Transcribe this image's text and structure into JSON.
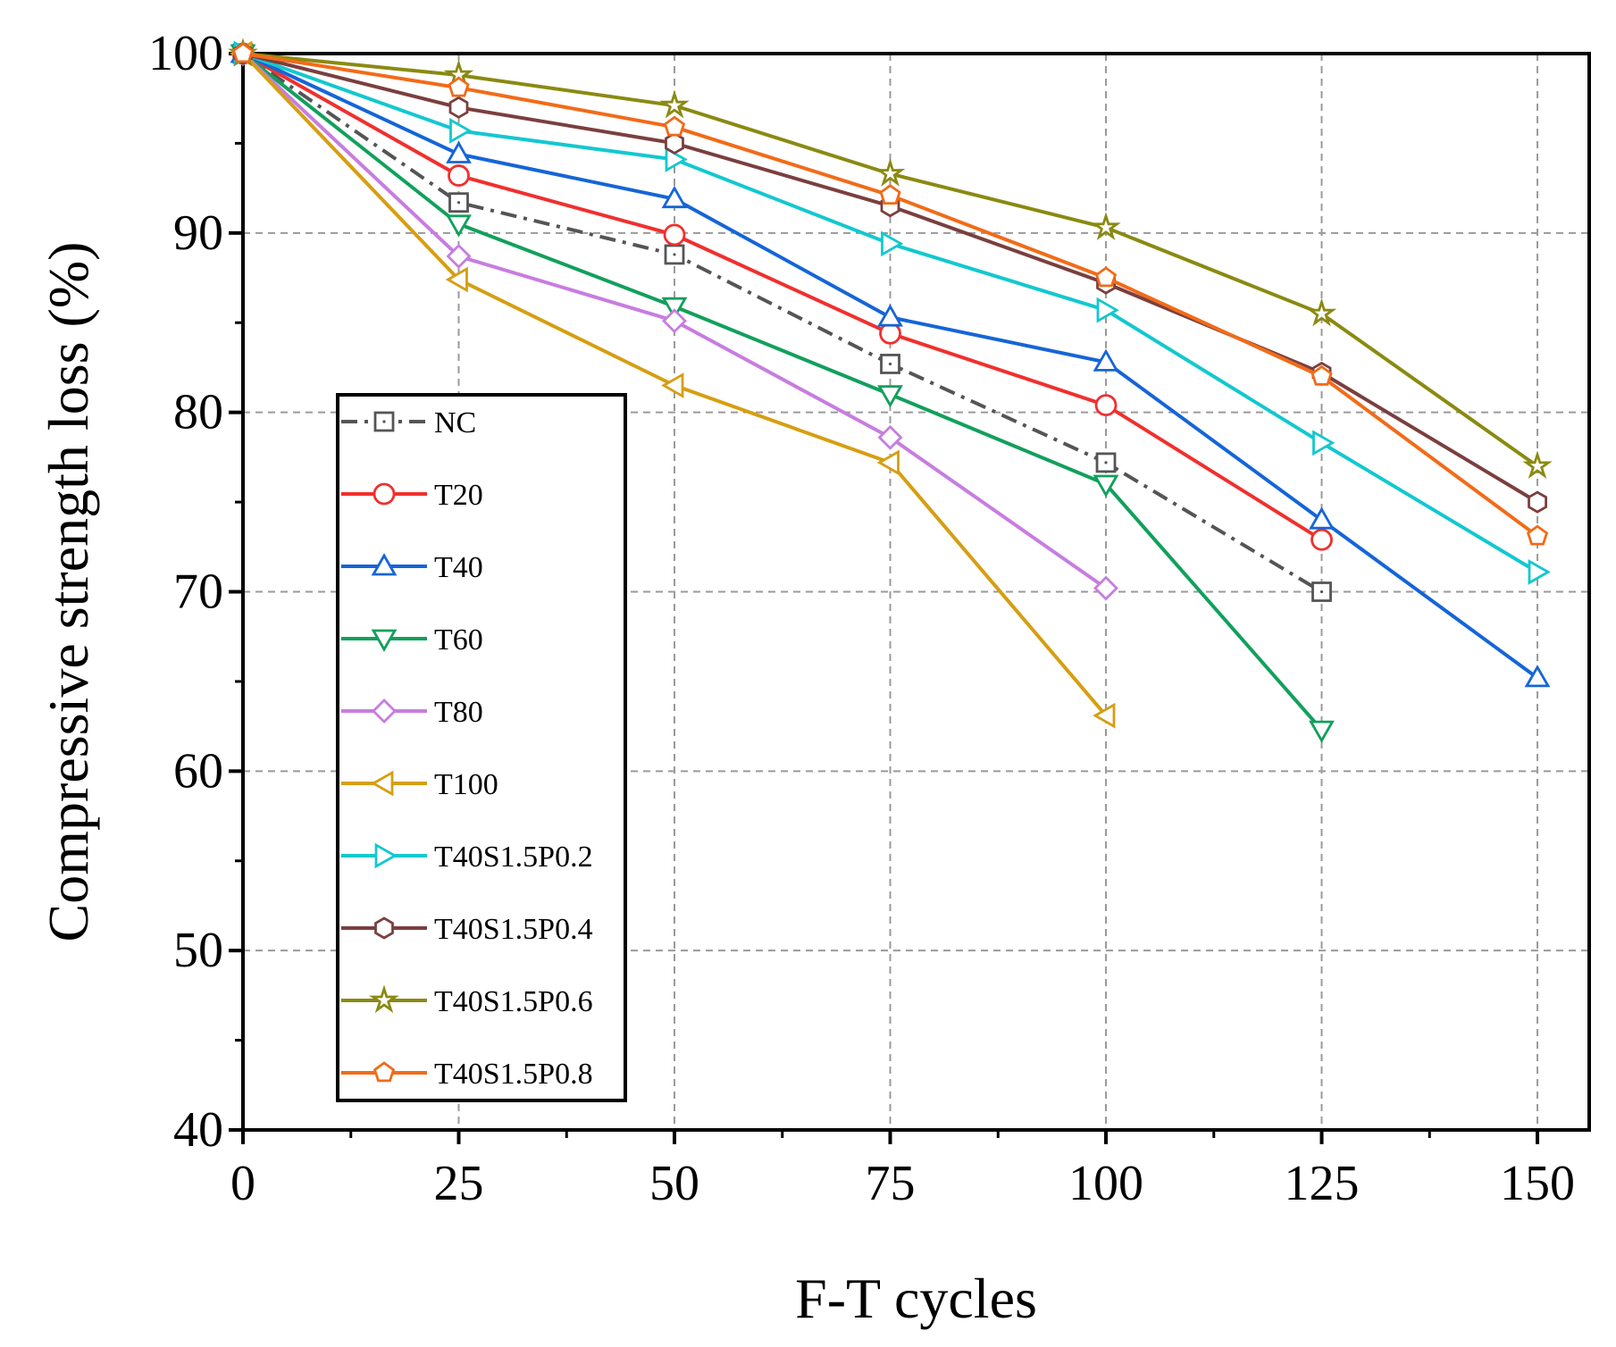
{
  "chart_data": {
    "type": "line",
    "xlabel": "F-T cycles",
    "ylabel": "Compressive strength loss  (%)",
    "xlim": [
      0,
      156
    ],
    "ylim": [
      40,
      100
    ],
    "x_ticks": [
      0,
      25,
      50,
      75,
      100,
      125,
      150
    ],
    "y_ticks": [
      40,
      50,
      60,
      70,
      80,
      90,
      100
    ],
    "x_tick_labels": [
      "0",
      "25",
      "50",
      "75",
      "100",
      "125",
      "150"
    ],
    "y_tick_labels": [
      "40",
      "50",
      "60",
      "70",
      "80",
      "90",
      "100"
    ],
    "grid": true,
    "legend_position": "lower-left (inside plot)",
    "series": [
      {
        "name": "NC",
        "color": "#555555",
        "marker": "square",
        "dash": "dashdot",
        "x": [
          0,
          25,
          50,
          75,
          100,
          125
        ],
        "y": [
          100,
          91.7,
          88.8,
          82.7,
          77.2,
          70.0
        ]
      },
      {
        "name": "T20",
        "color": "#f0302e",
        "marker": "circle",
        "dash": "solid",
        "x": [
          0,
          25,
          50,
          75,
          100,
          125
        ],
        "y": [
          100,
          93.2,
          89.9,
          84.4,
          80.4,
          72.9
        ]
      },
      {
        "name": "T40",
        "color": "#1565d8",
        "marker": "triangle-up",
        "dash": "solid",
        "x": [
          0,
          25,
          50,
          75,
          100,
          125,
          150
        ],
        "y": [
          100,
          94.4,
          91.9,
          85.3,
          82.8,
          74.0,
          65.2
        ]
      },
      {
        "name": "T60",
        "color": "#12a05c",
        "marker": "triangle-down",
        "dash": "solid",
        "x": [
          0,
          25,
          50,
          75,
          100,
          125
        ],
        "y": [
          100,
          90.5,
          85.9,
          81.0,
          76.0,
          62.3
        ]
      },
      {
        "name": "T80",
        "color": "#c77de0",
        "marker": "diamond",
        "dash": "solid",
        "x": [
          0,
          25,
          50,
          75,
          100
        ],
        "y": [
          100,
          88.7,
          85.1,
          78.6,
          70.2
        ]
      },
      {
        "name": "T100",
        "color": "#d69e12",
        "marker": "triangle-left",
        "dash": "solid",
        "x": [
          0,
          25,
          50,
          75,
          100
        ],
        "y": [
          100,
          87.4,
          81.5,
          77.2,
          63.1
        ]
      },
      {
        "name": "T40S1.5P0.2",
        "color": "#13c8cf",
        "marker": "triangle-right",
        "dash": "solid",
        "x": [
          0,
          25,
          50,
          75,
          100,
          125,
          150
        ],
        "y": [
          100,
          95.7,
          94.1,
          89.4,
          85.7,
          78.3,
          71.1
        ]
      },
      {
        "name": "T40S1.5P0.4",
        "color": "#7b3f3f",
        "marker": "hexagon",
        "dash": "solid",
        "x": [
          0,
          25,
          50,
          75,
          100,
          125,
          150
        ],
        "y": [
          100,
          97.0,
          95.0,
          91.5,
          87.2,
          82.2,
          75.0
        ]
      },
      {
        "name": "T40S1.5P0.6",
        "color": "#8a8a12",
        "marker": "star",
        "dash": "solid",
        "x": [
          0,
          25,
          50,
          75,
          100,
          125,
          150
        ],
        "y": [
          100,
          98.8,
          97.1,
          93.3,
          90.3,
          85.5,
          77.0
        ]
      },
      {
        "name": "T40S1.5P0.8",
        "color": "#f26b18",
        "marker": "pentagon",
        "dash": "solid",
        "x": [
          0,
          25,
          50,
          75,
          100,
          125,
          150
        ],
        "y": [
          100,
          98.1,
          95.9,
          92.1,
          87.5,
          82.0,
          73.1
        ]
      }
    ]
  }
}
